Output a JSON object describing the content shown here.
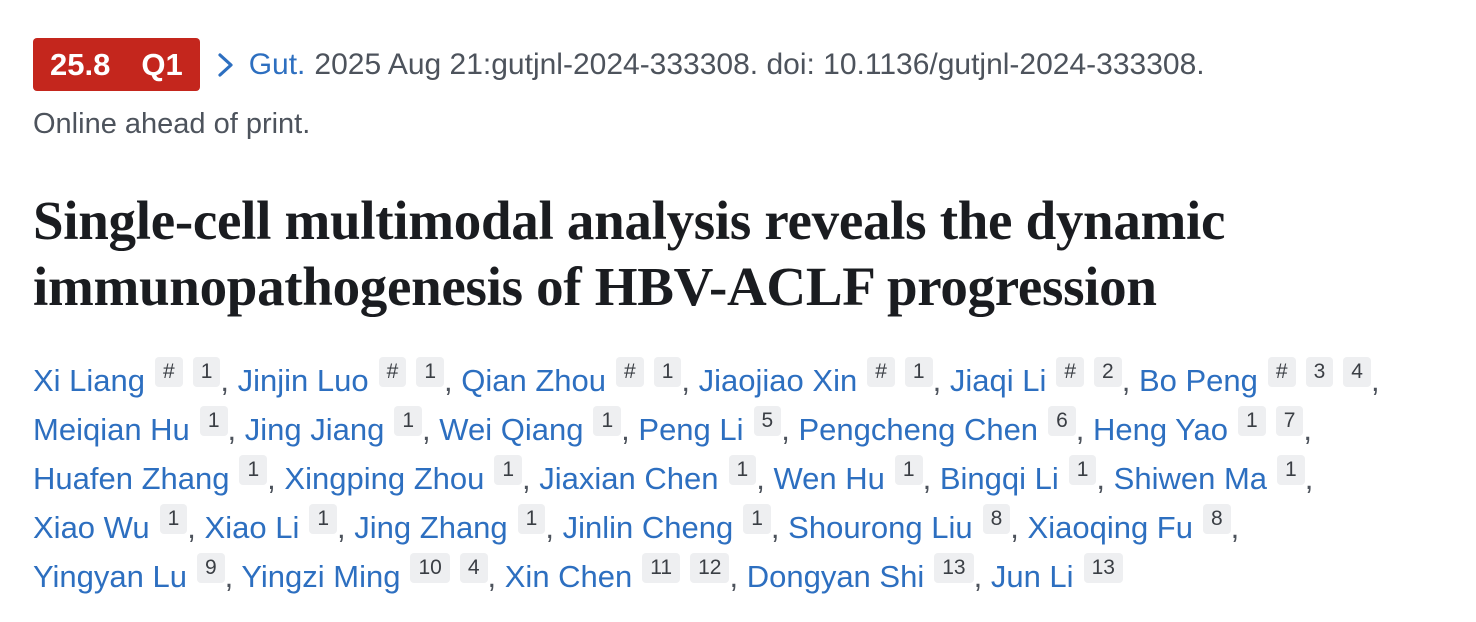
{
  "metric_badge": {
    "impact_factor": "25.8",
    "quartile": "Q1",
    "bg_color": "#c4261d",
    "text_color": "#ffffff"
  },
  "citation": {
    "journal_link": "Gut.",
    "detail_text": "2025 Aug 21:gutjnl-2024-333308. doi: 10.1136/gutjnl-2024-333308.",
    "status_line": "Online ahead of print."
  },
  "article": {
    "title_line1": "Single-cell multimodal analysis reveals the dynamic",
    "title_line2": "immunopathogenesis of HBV-ACLF progression"
  },
  "author_separator": ", ",
  "authors": [
    {
      "name": "Xi Liang",
      "sups": [
        "#",
        "1"
      ]
    },
    {
      "name": "Jinjin Luo",
      "sups": [
        "#",
        "1"
      ]
    },
    {
      "name": "Qian Zhou",
      "sups": [
        "#",
        "1"
      ]
    },
    {
      "name": "Jiaojiao Xin",
      "sups": [
        "#",
        "1"
      ]
    },
    {
      "name": "Jiaqi Li",
      "sups": [
        "#",
        "2"
      ]
    },
    {
      "name": "Bo Peng",
      "sups": [
        "#",
        "3",
        "4"
      ]
    },
    {
      "name": "Meiqian Hu",
      "sups": [
        "1"
      ]
    },
    {
      "name": "Jing Jiang",
      "sups": [
        "1"
      ]
    },
    {
      "name": "Wei Qiang",
      "sups": [
        "1"
      ]
    },
    {
      "name": "Peng Li",
      "sups": [
        "5"
      ]
    },
    {
      "name": "Pengcheng Chen",
      "sups": [
        "6"
      ]
    },
    {
      "name": "Heng Yao",
      "sups": [
        "1",
        "7"
      ]
    },
    {
      "name": "Huafen Zhang",
      "sups": [
        "1"
      ]
    },
    {
      "name": "Xingping Zhou",
      "sups": [
        "1"
      ]
    },
    {
      "name": "Jiaxian Chen",
      "sups": [
        "1"
      ]
    },
    {
      "name": "Wen Hu",
      "sups": [
        "1"
      ]
    },
    {
      "name": "Bingqi Li",
      "sups": [
        "1"
      ]
    },
    {
      "name": "Shiwen Ma",
      "sups": [
        "1"
      ]
    },
    {
      "name": "Xiao Wu",
      "sups": [
        "1"
      ]
    },
    {
      "name": "Xiao Li",
      "sups": [
        "1"
      ]
    },
    {
      "name": "Jing Zhang",
      "sups": [
        "1"
      ]
    },
    {
      "name": "Jinlin Cheng",
      "sups": [
        "1"
      ]
    },
    {
      "name": "Shourong Liu",
      "sups": [
        "8"
      ]
    },
    {
      "name": "Xiaoqing Fu",
      "sups": [
        "8"
      ]
    },
    {
      "name": "Yingyan Lu",
      "sups": [
        "9"
      ]
    },
    {
      "name": "Yingzi Ming",
      "sups": [
        "10",
        "4"
      ]
    },
    {
      "name": "Xin Chen",
      "sups": [
        "11",
        "12"
      ]
    },
    {
      "name": "Dongyan Shi",
      "sups": [
        "13"
      ]
    },
    {
      "name": "Jun Li",
      "sups": [
        "13"
      ]
    }
  ],
  "colors": {
    "badge_bg": "#c4261d",
    "link_blue": "#2d6fc0",
    "citation_gray": "#4d535c",
    "title_black": "#1a1c20",
    "sup_badge_bg": "#eeeff1",
    "sup_badge_text": "#3a3e44"
  }
}
